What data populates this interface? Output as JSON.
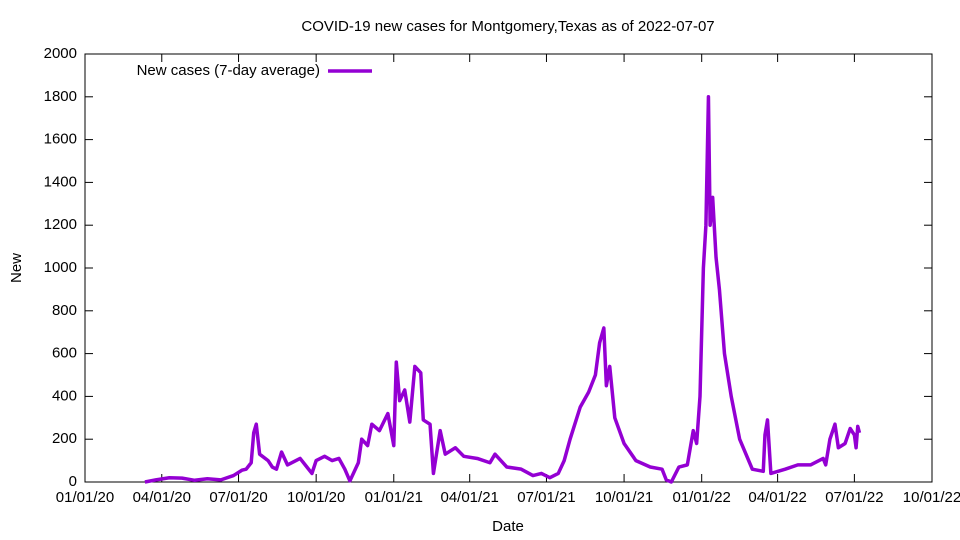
{
  "chart_data": {
    "type": "line",
    "title": "COVID-19 new cases for Montgomery,Texas as of 2022-07-07",
    "x_label": "Date",
    "y_label": "New",
    "legend": "top-left",
    "x": [
      "2020-03-12",
      "2020-03-25",
      "2020-04-10",
      "2020-04-25",
      "2020-05-10",
      "2020-05-25",
      "2020-06-10",
      "2020-06-25",
      "2020-07-05",
      "2020-07-10",
      "2020-07-16",
      "2020-07-19",
      "2020-07-22",
      "2020-07-26",
      "2020-08-05",
      "2020-08-10",
      "2020-08-15",
      "2020-08-21",
      "2020-08-28",
      "2020-09-12",
      "2020-09-20",
      "2020-09-26",
      "2020-10-01",
      "2020-10-11",
      "2020-10-20",
      "2020-10-28",
      "2020-11-04",
      "2020-11-10",
      "2020-11-20",
      "2020-11-24",
      "2020-12-01",
      "2020-12-06",
      "2020-12-15",
      "2020-12-25",
      "2021-01-01",
      "2021-01-04",
      "2021-01-08",
      "2021-01-14",
      "2021-01-20",
      "2021-01-26",
      "2021-02-02",
      "2021-02-05",
      "2021-02-13",
      "2021-02-17",
      "2021-02-25",
      "2021-03-03",
      "2021-03-15",
      "2021-03-25",
      "2021-04-10",
      "2021-04-25",
      "2021-05-01",
      "2021-05-15",
      "2021-06-01",
      "2021-06-15",
      "2021-06-25",
      "2021-07-05",
      "2021-07-15",
      "2021-07-22",
      "2021-07-29",
      "2021-08-10",
      "2021-08-20",
      "2021-08-28",
      "2021-09-02",
      "2021-09-07",
      "2021-09-10",
      "2021-09-14",
      "2021-09-20",
      "2021-10-01",
      "2021-10-15",
      "2021-11-01",
      "2021-11-15",
      "2021-11-20",
      "2021-11-26",
      "2021-12-05",
      "2021-12-15",
      "2021-12-22",
      "2021-12-26",
      "2021-12-30",
      "2022-01-03",
      "2022-01-06",
      "2022-01-09",
      "2022-01-11",
      "2022-01-14",
      "2022-01-18",
      "2022-01-22",
      "2022-01-28",
      "2022-02-05",
      "2022-02-15",
      "2022-03-02",
      "2022-03-15",
      "2022-03-17",
      "2022-03-20",
      "2022-03-24",
      "2022-04-10",
      "2022-04-25",
      "2022-05-10",
      "2022-05-25",
      "2022-05-28",
      "2022-06-02",
      "2022-06-08",
      "2022-06-12",
      "2022-06-20",
      "2022-06-26",
      "2022-07-01",
      "2022-07-03",
      "2022-07-05",
      "2022-07-07"
    ],
    "series": [
      {
        "name": "New cases (7-day average)",
        "color": "#9400d3",
        "values": [
          0,
          10,
          20,
          18,
          8,
          15,
          10,
          30,
          55,
          60,
          90,
          230,
          270,
          130,
          100,
          70,
          60,
          140,
          80,
          110,
          70,
          40,
          100,
          120,
          100,
          110,
          60,
          5,
          90,
          200,
          170,
          270,
          240,
          320,
          170,
          560,
          380,
          430,
          280,
          540,
          510,
          290,
          270,
          40,
          240,
          130,
          160,
          120,
          110,
          90,
          130,
          70,
          60,
          30,
          40,
          20,
          40,
          100,
          200,
          350,
          420,
          500,
          650,
          720,
          450,
          540,
          300,
          180,
          100,
          70,
          60,
          10,
          0,
          70,
          80,
          240,
          180,
          400,
          1000,
          1200,
          1800,
          1200,
          1330,
          1050,
          900,
          600,
          400,
          200,
          60,
          50,
          220,
          290,
          40,
          60,
          80,
          80,
          110,
          80,
          200,
          270,
          160,
          180,
          250,
          220,
          160,
          260,
          230
        ]
      }
    ],
    "xlim": [
      "2020-01-01",
      "2022-10-01"
    ],
    "xticks": [
      {
        "value": "2020-01-01",
        "label": "01/01/20"
      },
      {
        "value": "2020-04-01",
        "label": "04/01/20"
      },
      {
        "value": "2020-07-01",
        "label": "07/01/20"
      },
      {
        "value": "2020-10-01",
        "label": "10/01/20"
      },
      {
        "value": "2021-01-01",
        "label": "01/01/21"
      },
      {
        "value": "2021-04-01",
        "label": "04/01/21"
      },
      {
        "value": "2021-07-01",
        "label": "07/01/21"
      },
      {
        "value": "2021-10-01",
        "label": "10/01/21"
      },
      {
        "value": "2022-01-01",
        "label": "01/01/22"
      },
      {
        "value": "2022-04-01",
        "label": "04/01/22"
      },
      {
        "value": "2022-07-01",
        "label": "07/01/22"
      },
      {
        "value": "2022-10-01",
        "label": "10/01/22"
      }
    ],
    "ylim": [
      0,
      2000
    ],
    "yticks": [
      0,
      200,
      400,
      600,
      800,
      1000,
      1200,
      1400,
      1600,
      1800,
      2000
    ]
  }
}
